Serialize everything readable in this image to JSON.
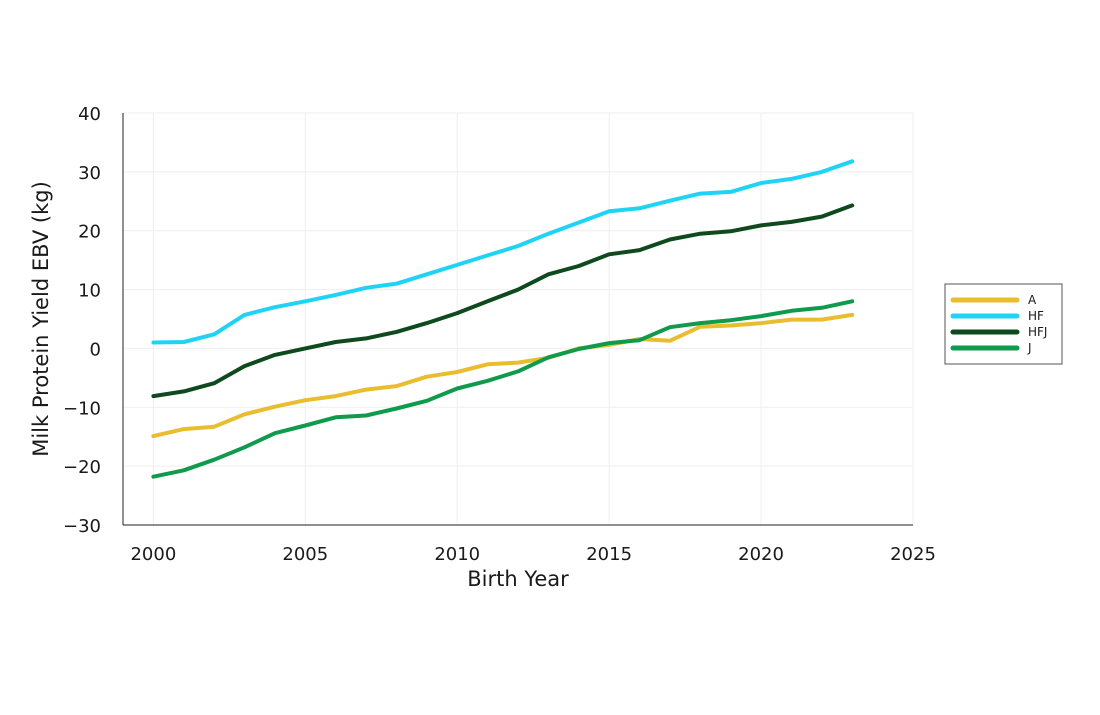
{
  "chart_data": {
    "type": "line",
    "title": "",
    "xlabel": "Birth Year",
    "ylabel": "Milk Protein Yield EBV (kg)",
    "xlim": [
      1999,
      2025
    ],
    "ylim": [
      -30,
      40
    ],
    "x_ticks": [
      2000,
      2005,
      2010,
      2015,
      2020,
      2025
    ],
    "y_ticks": [
      -30,
      -20,
      -10,
      0,
      10,
      20,
      30,
      40
    ],
    "x_tick_labels": [
      "2000",
      "2005",
      "2010",
      "2015",
      "2020",
      "2025"
    ],
    "y_tick_labels": [
      "−30",
      "−20",
      "−10",
      "0",
      "10",
      "20",
      "30",
      "40"
    ],
    "grid": true,
    "legend_position": "right",
    "x": [
      2000,
      2001,
      2002,
      2003,
      2004,
      2005,
      2006,
      2007,
      2008,
      2009,
      2010,
      2011,
      2012,
      2013,
      2014,
      2015,
      2016,
      2017,
      2018,
      2019,
      2020,
      2021,
      2022,
      2023
    ],
    "series": [
      {
        "name": "A",
        "color": "#E9BD2E",
        "values": [
          -14.9,
          -13.7,
          -13.3,
          -11.2,
          -9.9,
          -8.8,
          -8.1,
          -7.0,
          -6.4,
          -4.8,
          -4.0,
          -2.7,
          -2.4,
          -1.6,
          0.0,
          0.6,
          1.6,
          1.3,
          3.7,
          3.9,
          4.3,
          4.9,
          4.9,
          5.7
        ]
      },
      {
        "name": "HF",
        "color": "#1FD3F5",
        "values": [
          1.0,
          1.1,
          2.4,
          5.7,
          7.0,
          8.0,
          9.1,
          10.3,
          11.0,
          12.6,
          14.2,
          15.8,
          17.4,
          19.5,
          21.4,
          23.3,
          23.8,
          25.1,
          26.3,
          26.6,
          28.1,
          28.8,
          30.0,
          31.8
        ]
      },
      {
        "name": "HFJ",
        "color": "#0E4A1E",
        "values": [
          -8.1,
          -7.3,
          -5.9,
          -3.0,
          -1.1,
          0.0,
          1.1,
          1.7,
          2.8,
          4.3,
          6.0,
          8.0,
          10.0,
          12.6,
          14.0,
          16.0,
          16.7,
          18.5,
          19.5,
          19.9,
          20.9,
          21.5,
          22.4,
          24.3
        ]
      },
      {
        "name": "J",
        "color": "#0F9A4C",
        "values": [
          -21.8,
          -20.7,
          -18.9,
          -16.8,
          -14.4,
          -13.1,
          -11.7,
          -11.4,
          -10.2,
          -8.9,
          -6.8,
          -5.5,
          -3.9,
          -1.5,
          -0.1,
          0.9,
          1.4,
          3.6,
          4.3,
          4.8,
          5.5,
          6.4,
          6.9,
          8.0
        ]
      }
    ]
  }
}
